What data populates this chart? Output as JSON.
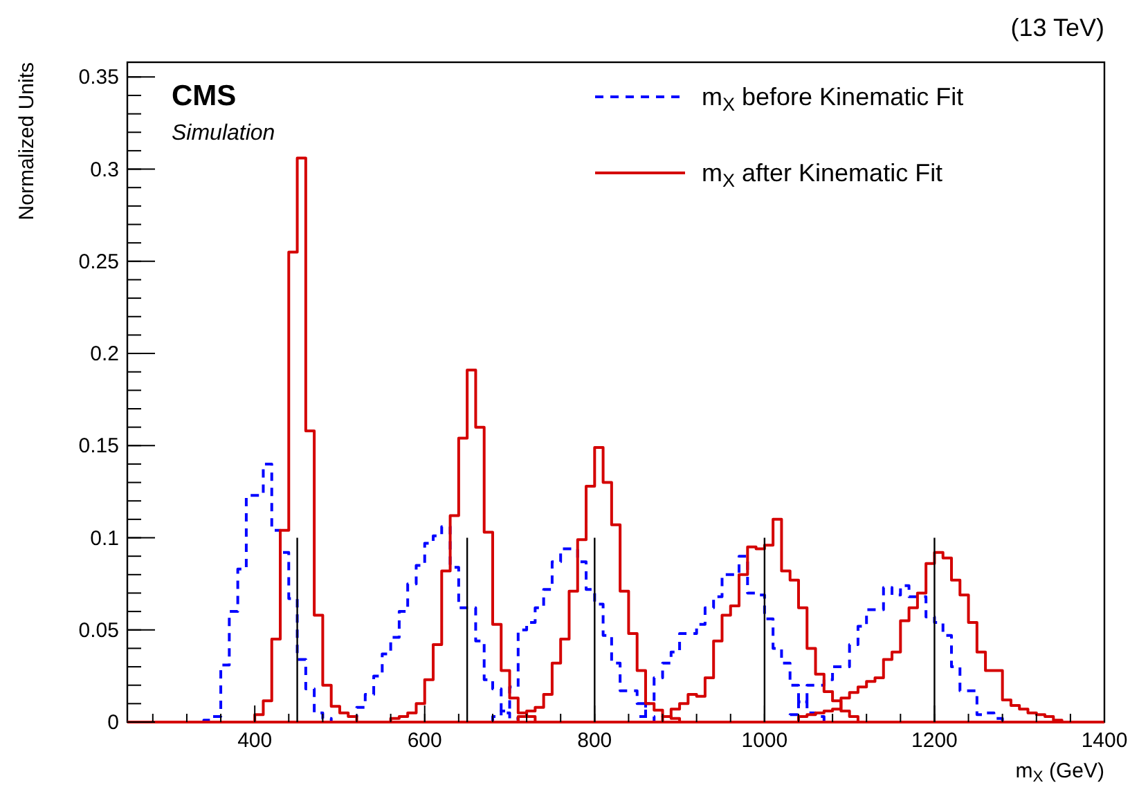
{
  "chart_data": {
    "type": "step",
    "title": "CMS",
    "subtitle": "Simulation",
    "xlabel": "m$_{X}$ (GeV)",
    "ylabel": "Normalized Units",
    "annotations": [
      "(13 TeV)"
    ],
    "xlim": [
      250,
      1400
    ],
    "xticks": [
      400,
      600,
      800,
      1000,
      1200,
      1400
    ],
    "ylim": [
      0,
      0.358
    ],
    "yticks": [
      0,
      0.05,
      0.1,
      0.15,
      0.2,
      0.25,
      0.3,
      0.35
    ],
    "legend": "top right",
    "series": [
      {
        "name": "m$_{X}$ before Kinematic Fit",
        "color": "#0000ff",
        "line_style": "dashed",
        "x": [
          250,
          340,
          350,
          360,
          370,
          380,
          390,
          400,
          410,
          420,
          430,
          440,
          450,
          460,
          470,
          480,
          490,
          1400
        ],
        "values": [
          0,
          0.001,
          0.003,
          0.031,
          0.06,
          0.083,
          0.123,
          0.123,
          0.14,
          0.104,
          0.092,
          0.067,
          0.034,
          0.018,
          0.005,
          0.002,
          0,
          0
        ]
      },
      {
        "color": "#0000ff",
        "line_style": "dashed",
        "x": [
          250,
          510,
          520,
          530,
          540,
          550,
          560,
          570,
          580,
          590,
          600,
          610,
          620,
          630,
          640,
          650,
          660,
          670,
          680,
          690,
          700,
          710,
          1400
        ],
        "values": [
          0,
          0.003,
          0.008,
          0.015,
          0.025,
          0.037,
          0.046,
          0.06,
          0.075,
          0.085,
          0.097,
          0.101,
          0.106,
          0.084,
          0.062,
          0.062,
          0.044,
          0.023,
          0.018,
          0.005,
          0.002,
          0,
          0
        ]
      },
      {
        "color": "#0000ff",
        "line_style": "dashed",
        "x": [
          250,
          680,
          690,
          700,
          710,
          720,
          730,
          740,
          750,
          760,
          770,
          780,
          790,
          800,
          810,
          820,
          830,
          840,
          850,
          860,
          870,
          1400
        ],
        "values": [
          0,
          0.003,
          0.006,
          0.019,
          0.05,
          0.054,
          0.062,
          0.072,
          0.087,
          0.094,
          0.094,
          0.087,
          0.072,
          0.064,
          0.047,
          0.032,
          0.017,
          0.017,
          0.01,
          0.003,
          0,
          0
        ]
      },
      {
        "color": "#0000ff",
        "line_style": "dashed",
        "x": [
          250,
          850,
          860,
          870,
          880,
          890,
          900,
          910,
          920,
          930,
          940,
          950,
          960,
          970,
          980,
          990,
          1000,
          1010,
          1020,
          1030,
          1040,
          1050,
          1060,
          1070,
          1400
        ],
        "values": [
          0,
          0.003,
          0.01,
          0.024,
          0.032,
          0.038,
          0.048,
          0.048,
          0.053,
          0.062,
          0.068,
          0.08,
          0.08,
          0.09,
          0.07,
          0.069,
          0.056,
          0.04,
          0.032,
          0.02,
          0.011,
          0.005,
          0.003,
          0,
          0
        ]
      },
      {
        "color": "#0000ff",
        "line_style": "dashed",
        "x": [
          250,
          1030,
          1040,
          1050,
          1060,
          1070,
          1080,
          1090,
          1100,
          1110,
          1120,
          1130,
          1140,
          1150,
          1160,
          1170,
          1180,
          1190,
          1200,
          1210,
          1220,
          1230,
          1240,
          1250,
          1260,
          1270,
          1280,
          1400
        ],
        "values": [
          0,
          0.004,
          0.011,
          0.02,
          0.02,
          0.023,
          0.03,
          0.03,
          0.042,
          0.052,
          0.061,
          0.061,
          0.073,
          0.069,
          0.074,
          0.068,
          0.068,
          0.057,
          0.054,
          0.047,
          0.03,
          0.017,
          0.017,
          0.004,
          0.005,
          0.002,
          0,
          0
        ]
      },
      {
        "name": "m$_{X}$ after Kinematic Fit",
        "color": "#d40000",
        "line_style": "solid",
        "x": [
          250,
          400,
          410,
          420,
          430,
          440,
          450,
          460,
          470,
          480,
          490,
          500,
          510,
          520,
          1400
        ],
        "values": [
          0,
          0.004,
          0.0115,
          0.045,
          0.104,
          0.255,
          0.306,
          0.158,
          0.058,
          0.02,
          0.0085,
          0.005,
          0.003,
          0,
          0
        ]
      },
      {
        "color": "#d40000",
        "line_style": "solid",
        "x": [
          250,
          560,
          570,
          580,
          590,
          600,
          610,
          620,
          630,
          640,
          650,
          660,
          670,
          680,
          690,
          700,
          710,
          720,
          730,
          1400
        ],
        "values": [
          0,
          0.002,
          0.003,
          0.005,
          0.01,
          0.023,
          0.042,
          0.082,
          0.112,
          0.154,
          0.191,
          0.16,
          0.103,
          0.053,
          0.028,
          0.013,
          0.005,
          0.003,
          0,
          0
        ]
      },
      {
        "color": "#d40000",
        "line_style": "solid",
        "x": [
          250,
          710,
          720,
          730,
          740,
          750,
          760,
          770,
          780,
          790,
          800,
          810,
          820,
          830,
          840,
          850,
          860,
          870,
          880,
          890,
          900,
          1400
        ],
        "values": [
          0,
          0.003,
          0.006,
          0.008,
          0.015,
          0.032,
          0.045,
          0.071,
          0.099,
          0.128,
          0.149,
          0.13,
          0.107,
          0.071,
          0.048,
          0.028,
          0.01,
          0.0065,
          0.003,
          0.002,
          0,
          0
        ]
      },
      {
        "color": "#d40000",
        "line_style": "solid",
        "x": [
          250,
          880,
          890,
          900,
          910,
          920,
          930,
          940,
          950,
          960,
          970,
          980,
          990,
          1000,
          1010,
          1020,
          1030,
          1040,
          1050,
          1060,
          1070,
          1080,
          1090,
          1100,
          1110,
          1400
        ],
        "values": [
          0,
          0.003,
          0.007,
          0.01,
          0.015,
          0.014,
          0.024,
          0.044,
          0.058,
          0.063,
          0.08,
          0.095,
          0.094,
          0.096,
          0.11,
          0.082,
          0.077,
          0.062,
          0.04,
          0.026,
          0.0165,
          0.0115,
          0.006,
          0.003,
          0,
          0
        ]
      },
      {
        "color": "#d40000",
        "line_style": "solid",
        "x": [
          250,
          1040,
          1050,
          1060,
          1070,
          1080,
          1090,
          1100,
          1110,
          1120,
          1130,
          1140,
          1150,
          1160,
          1170,
          1180,
          1190,
          1200,
          1210,
          1220,
          1230,
          1240,
          1250,
          1260,
          1270,
          1280,
          1290,
          1300,
          1310,
          1320,
          1330,
          1340,
          1350,
          1400
        ],
        "values": [
          0,
          0.003,
          0.004,
          0.005,
          0.006,
          0.007,
          0.013,
          0.016,
          0.019,
          0.022,
          0.024,
          0.034,
          0.038,
          0.055,
          0.062,
          0.07,
          0.086,
          0.092,
          0.089,
          0.077,
          0.069,
          0.054,
          0.038,
          0.028,
          0.028,
          0.012,
          0.009,
          0.007,
          0.005,
          0.004,
          0.003,
          0.001,
          0,
          0
        ]
      },
      {
        "type": "bar",
        "color": "#000000",
        "x": [
          450,
          650,
          800,
          1000,
          1200
        ],
        "values": [
          0.1,
          0.1,
          0.1,
          0.1,
          0.1
        ]
      }
    ]
  }
}
